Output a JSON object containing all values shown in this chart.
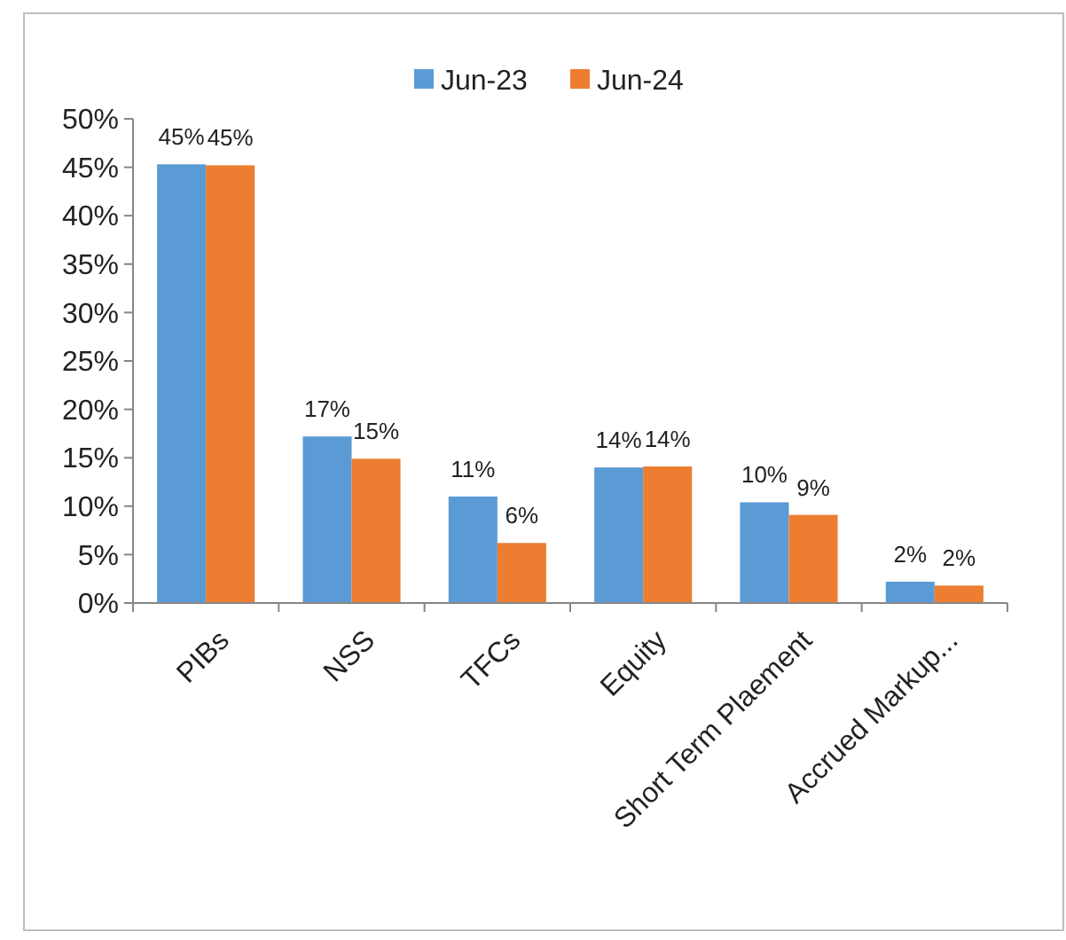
{
  "chart_data": {
    "type": "bar",
    "categories": [
      "PIBs",
      "NSS",
      "TFCs",
      "Equity",
      "Short Term Plaement",
      "Accrued Markup..."
    ],
    "series": [
      {
        "name": "Jun-23",
        "color": "#5b9bd5",
        "values": [
          45.3,
          17.2,
          11.0,
          14.0,
          10.4,
          2.2
        ],
        "value_labels": [
          "45%",
          "17%",
          "11%",
          "14%",
          "10%",
          "2%"
        ]
      },
      {
        "name": "Jun-24",
        "color": "#ed7d31",
        "values": [
          45.2,
          14.9,
          6.2,
          14.1,
          9.1,
          1.8
        ],
        "value_labels": [
          "45%",
          "15%",
          "6%",
          "14%",
          "9%",
          "2%"
        ]
      }
    ],
    "ylim": [
      0,
      50
    ],
    "yticks": [
      {
        "value": 0,
        "label": "0%"
      },
      {
        "value": 5,
        "label": "5%"
      },
      {
        "value": 10,
        "label": "10%"
      },
      {
        "value": 15,
        "label": "15%"
      },
      {
        "value": 20,
        "label": "20%"
      },
      {
        "value": 25,
        "label": "25%"
      },
      {
        "value": 30,
        "label": "30%"
      },
      {
        "value": 35,
        "label": "35%"
      },
      {
        "value": 40,
        "label": "40%"
      },
      {
        "value": 45,
        "label": "45%"
      },
      {
        "value": 50,
        "label": "50%"
      }
    ],
    "grid": false,
    "legend": "top"
  }
}
